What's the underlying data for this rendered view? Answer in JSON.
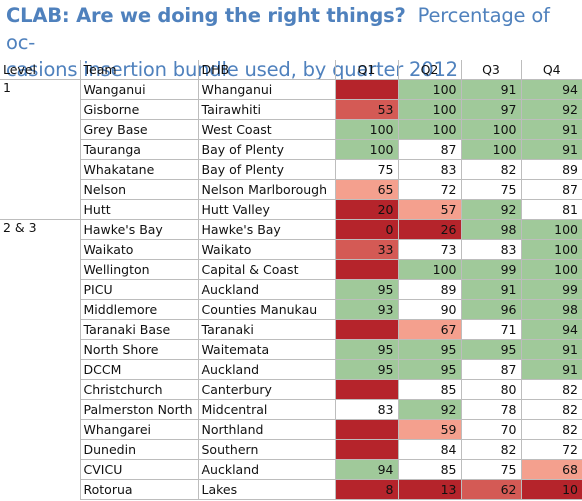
{
  "title_part1": "CLAB: Are we doing the right things?",
  "title_part2": "Percentage of occasions insertion bundle used, by quarter 2012",
  "title_line1_rest": "Percentage of oc-",
  "title_line2": "casions insertion bundle used, by quarter 2012",
  "colors": {
    "title": "#4f81bd",
    "green": "#a0c99a",
    "light_red": "#f4a08e",
    "mid_red": "#d45a55",
    "dark_red": "#b5242b",
    "white": "#ffffff"
  },
  "chart_data": {
    "type": "table",
    "title": "CLAB: Are we doing the right things?  Percentage of occasions insertion bundle used, by quarter 2012",
    "columns": [
      "Level",
      "Team",
      "DHB",
      "Q1",
      "Q2",
      "Q3",
      "Q4"
    ],
    "rows": [
      {
        "level": "1",
        "team": "Wanganui",
        "dhb": "Whanganui",
        "q": [
          "",
          "100",
          "91",
          "94"
        ],
        "c": [
          "dark_red",
          "green",
          "green",
          "green"
        ]
      },
      {
        "level": "",
        "team": "Gisborne",
        "dhb": "Tairawhiti",
        "q": [
          "53",
          "100",
          "97",
          "92"
        ],
        "c": [
          "mid_red",
          "green",
          "green",
          "green"
        ]
      },
      {
        "level": "",
        "team": "Grey Base",
        "dhb": "West Coast",
        "q": [
          "100",
          "100",
          "100",
          "91"
        ],
        "c": [
          "green",
          "green",
          "green",
          "green"
        ]
      },
      {
        "level": "",
        "team": "Tauranga",
        "dhb": "Bay of Plenty",
        "q": [
          "100",
          "87",
          "100",
          "91"
        ],
        "c": [
          "green",
          "white",
          "green",
          "green"
        ]
      },
      {
        "level": "",
        "team": "Whakatane",
        "dhb": "Bay of Plenty",
        "q": [
          "75",
          "83",
          "82",
          "89"
        ],
        "c": [
          "white",
          "white",
          "white",
          "white"
        ]
      },
      {
        "level": "",
        "team": "Nelson",
        "dhb": "Nelson Marlborough",
        "q": [
          "65",
          "72",
          "75",
          "87"
        ],
        "c": [
          "light_red",
          "white",
          "white",
          "white"
        ]
      },
      {
        "level": "",
        "team": "Hutt",
        "dhb": "Hutt Valley",
        "q": [
          "20",
          "57",
          "92",
          "81"
        ],
        "c": [
          "dark_red",
          "light_red",
          "green",
          "white"
        ]
      },
      {
        "level": "2 & 3",
        "team": "Hawke's Bay",
        "dhb": "Hawke's Bay",
        "q": [
          "0",
          "26",
          "98",
          "100"
        ],
        "c": [
          "dark_red",
          "dark_red",
          "green",
          "green"
        ]
      },
      {
        "level": "",
        "team": "Waikato",
        "dhb": "Waikato",
        "q": [
          "33",
          "73",
          "83",
          "100"
        ],
        "c": [
          "mid_red",
          "white",
          "white",
          "green"
        ]
      },
      {
        "level": "",
        "team": "Wellington",
        "dhb": "Capital & Coast",
        "q": [
          "",
          "100",
          "99",
          "100"
        ],
        "c": [
          "dark_red",
          "green",
          "green",
          "green"
        ]
      },
      {
        "level": "",
        "team": "PICU",
        "dhb": "Auckland",
        "q": [
          "95",
          "89",
          "91",
          "99"
        ],
        "c": [
          "green",
          "white",
          "green",
          "green"
        ]
      },
      {
        "level": "",
        "team": "Middlemore",
        "dhb": "Counties Manukau",
        "q": [
          "93",
          "90",
          "96",
          "98"
        ],
        "c": [
          "green",
          "white",
          "green",
          "green"
        ]
      },
      {
        "level": "",
        "team": "Taranaki Base",
        "dhb": "Taranaki",
        "q": [
          "",
          "67",
          "71",
          "94"
        ],
        "c": [
          "dark_red",
          "light_red",
          "white",
          "green"
        ]
      },
      {
        "level": "",
        "team": "North Shore",
        "dhb": "Waitemata",
        "q": [
          "95",
          "95",
          "95",
          "91"
        ],
        "c": [
          "green",
          "green",
          "green",
          "green"
        ]
      },
      {
        "level": "",
        "team": "DCCM",
        "dhb": "Auckland",
        "q": [
          "95",
          "95",
          "87",
          "91"
        ],
        "c": [
          "green",
          "green",
          "white",
          "green"
        ]
      },
      {
        "level": "",
        "team": "Christchurch",
        "dhb": "Canterbury",
        "q": [
          "",
          "85",
          "80",
          "82"
        ],
        "c": [
          "dark_red",
          "white",
          "white",
          "white"
        ]
      },
      {
        "level": "",
        "team": "Palmerston North",
        "dhb": "Midcentral",
        "q": [
          "83",
          "92",
          "78",
          "82"
        ],
        "c": [
          "white",
          "green",
          "white",
          "white"
        ]
      },
      {
        "level": "",
        "team": "Whangarei",
        "dhb": "Northland",
        "q": [
          "",
          "59",
          "70",
          "82"
        ],
        "c": [
          "dark_red",
          "light_red",
          "white",
          "white"
        ]
      },
      {
        "level": "",
        "team": "Dunedin",
        "dhb": "Southern",
        "q": [
          "",
          "84",
          "82",
          "72"
        ],
        "c": [
          "dark_red",
          "white",
          "white",
          "white"
        ]
      },
      {
        "level": "",
        "team": "CVICU",
        "dhb": "Auckland",
        "q": [
          "94",
          "85",
          "75",
          "68"
        ],
        "c": [
          "green",
          "white",
          "white",
          "light_red"
        ]
      },
      {
        "level": "",
        "team": "Rotorua",
        "dhb": "Lakes",
        "q": [
          "8",
          "13",
          "62",
          "10"
        ],
        "c": [
          "dark_red",
          "dark_red",
          "mid_red",
          "dark_red"
        ]
      }
    ]
  }
}
